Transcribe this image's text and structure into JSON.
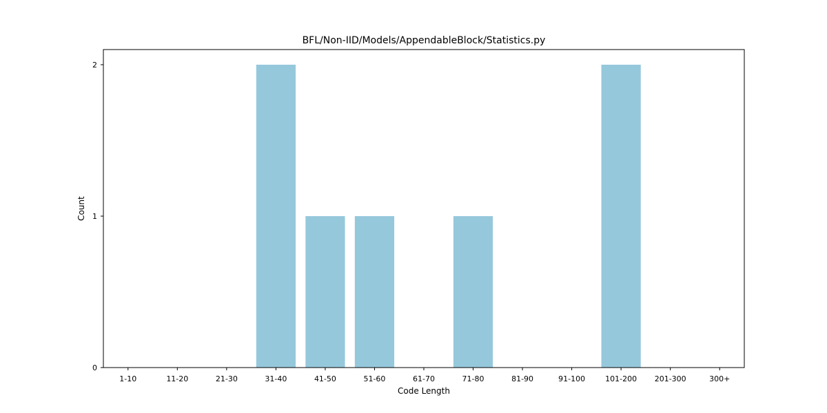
{
  "chart_data": {
    "type": "bar",
    "title": "BFL/Non-IID/Models/AppendableBlock/Statistics.py",
    "xlabel": "Code Length",
    "ylabel": "Count",
    "categories": [
      "1-10",
      "11-20",
      "21-30",
      "31-40",
      "41-50",
      "51-60",
      "61-70",
      "71-80",
      "81-90",
      "91-100",
      "101-200",
      "201-300",
      "300+"
    ],
    "values": [
      0,
      0,
      0,
      2,
      1,
      1,
      0,
      1,
      0,
      0,
      2,
      0,
      0
    ],
    "ylim": [
      0,
      2.1
    ],
    "yticks": [
      0,
      1,
      2
    ],
    "bar_color": "#96c8dc",
    "grid": false,
    "legend": false
  }
}
